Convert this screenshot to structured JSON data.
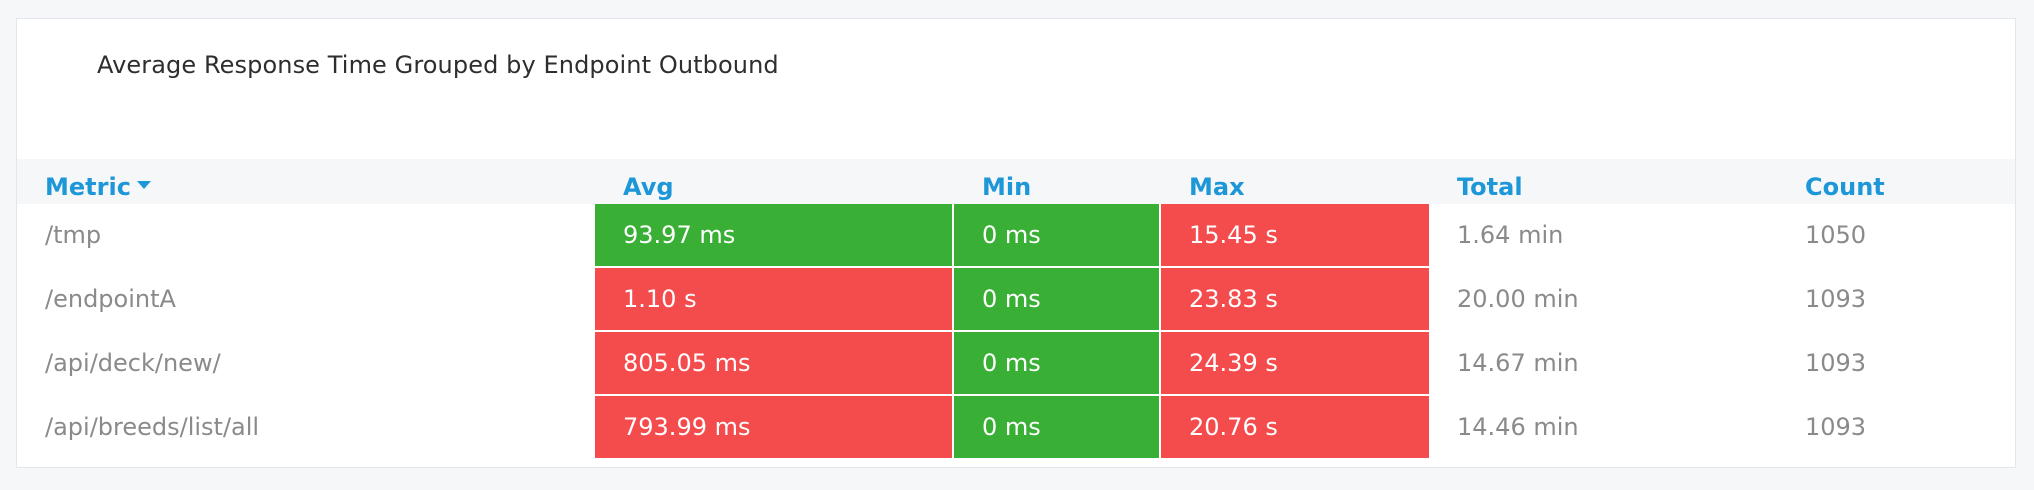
{
  "panel": {
    "title": "Average Response Time Grouped by Endpoint Outbound"
  },
  "table": {
    "columns": {
      "metric": "Metric",
      "avg": "Avg",
      "min": "Min",
      "max": "Max",
      "total": "Total",
      "count": "Count"
    },
    "sort_icon": "caret-down-icon",
    "status_colors": {
      "good": "#39b035",
      "bad": "#f44b4d"
    },
    "rows": [
      {
        "metric": "/tmp",
        "avg": "93.97 ms",
        "avg_status": "good",
        "min": "0 ms",
        "min_status": "good",
        "max": "15.45 s",
        "max_status": "bad",
        "total": "1.64 min",
        "count": "1050"
      },
      {
        "metric": "/endpointA",
        "avg": "1.10 s",
        "avg_status": "bad",
        "min": "0 ms",
        "min_status": "good",
        "max": "23.83 s",
        "max_status": "bad",
        "total": "20.00 min",
        "count": "1093"
      },
      {
        "metric": "/api/deck/new/",
        "avg": "805.05 ms",
        "avg_status": "bad",
        "min": "0 ms",
        "min_status": "good",
        "max": "24.39 s",
        "max_status": "bad",
        "total": "14.67 min",
        "count": "1093"
      },
      {
        "metric": "/api/breeds/list/all",
        "avg": "793.99 ms",
        "avg_status": "bad",
        "min": "0 ms",
        "min_status": "good",
        "max": "20.76 s",
        "max_status": "bad",
        "total": "14.46 min",
        "count": "1093"
      }
    ]
  }
}
